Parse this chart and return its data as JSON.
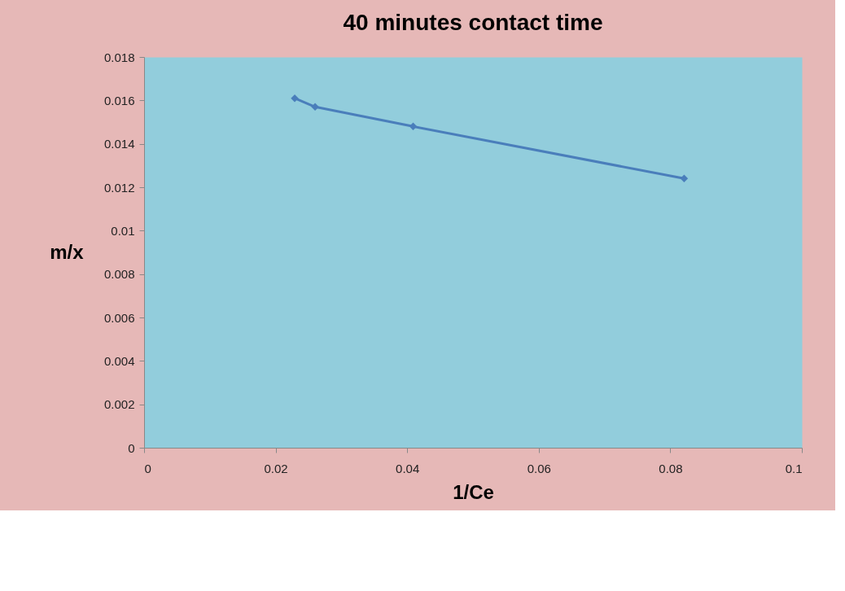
{
  "chart_data": {
    "type": "line",
    "title": "40 minutes contact time",
    "xlabel": "1/Ce",
    "ylabel": "m/x",
    "x": [
      0.0229,
      0.026,
      0.0409,
      0.0821
    ],
    "series": [
      {
        "color": "#4a7ebb",
        "values": [
          0.0161,
          0.0157,
          0.0148,
          0.0124
        ]
      }
    ],
    "xlim": [
      0,
      0.1
    ],
    "xticks": [
      0,
      0.02,
      0.04,
      0.06,
      0.08,
      0.1
    ],
    "ylim": [
      0,
      0.018
    ],
    "yticks": [
      0,
      0.002,
      0.004,
      0.006,
      0.008,
      0.01,
      0.012,
      0.014,
      0.016,
      0.018
    ],
    "grid": false,
    "marker": "diamond",
    "line_style": "solid"
  }
}
